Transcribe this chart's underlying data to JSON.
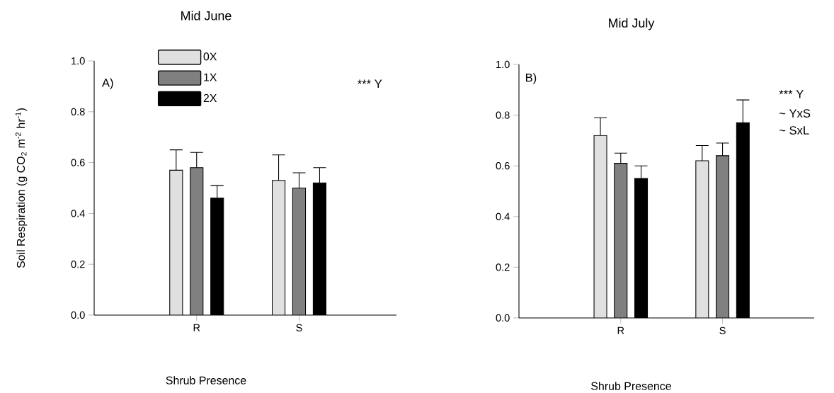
{
  "chart_data": [
    {
      "type": "bar",
      "title": "Mid June",
      "xlabel": "Shrub Presence",
      "ylabel": "Soil Respiration (g CO$_{2}$ m$^{-2}$ hr$^{-1}$)",
      "categories": [
        "R",
        "S"
      ],
      "series": [
        {
          "name": "0X",
          "color": "#e0e0e0",
          "values": [
            0.57,
            0.53
          ],
          "errors": [
            [
              0.57,
              0.65
            ],
            [
              0.53,
              0.63
            ]
          ]
        },
        {
          "name": "1X",
          "color": "#808080",
          "values": [
            0.58,
            0.5
          ],
          "errors": [
            [
              0.58,
              0.64
            ],
            [
              0.5,
              0.56
            ]
          ]
        },
        {
          "name": "2X",
          "color": "#000000",
          "values": [
            0.46,
            0.52
          ],
          "errors": [
            [
              0.46,
              0.51
            ],
            [
              0.52,
              0.58
            ]
          ]
        }
      ],
      "ylim": [
        0,
        1.0
      ],
      "yticks": [
        {
          "value": 0,
          "label": "0.0"
        },
        {
          "value": 0.2,
          "label": "0.2"
        },
        {
          "value": 0.4,
          "label": "0.4"
        },
        {
          "value": 0.6,
          "label": "0.6"
        },
        {
          "value": 0.8,
          "label": "0.8"
        },
        {
          "value": 1.0,
          "label": "1.0"
        }
      ],
      "annotations": [
        "A)",
        "*** Y"
      ],
      "legend": "top left",
      "grid": false
    },
    {
      "type": "bar",
      "title": "Mid July",
      "xlabel": "Shrub Presence",
      "categories": [
        "R",
        "S"
      ],
      "series": [
        {
          "color": "#e0e0e0",
          "values": [
            0.72,
            0.62
          ],
          "errors": [
            [
              0.72,
              0.79
            ],
            [
              0.62,
              0.68
            ]
          ]
        },
        {
          "color": "#808080",
          "values": [
            0.61,
            0.64
          ],
          "errors": [
            [
              0.61,
              0.65
            ],
            [
              0.64,
              0.69
            ]
          ]
        },
        {
          "color": "#000000",
          "values": [
            0.55,
            0.77
          ],
          "errors": [
            [
              0.55,
              0.6
            ],
            [
              0.77,
              0.86
            ]
          ]
        }
      ],
      "ylim": [
        0,
        1.0
      ],
      "yticks": [
        {
          "value": 0,
          "label": "0.0"
        },
        {
          "value": 0.2,
          "label": "0.2"
        },
        {
          "value": 0.4,
          "label": "0.4"
        },
        {
          "value": 0.6,
          "label": "0.6"
        },
        {
          "value": 0.8,
          "label": "0.8"
        },
        {
          "value": 1.0,
          "label": "1.0"
        }
      ],
      "annotations": [
        "B)",
        "*** Y",
        "~ YxS",
        "~ SxL"
      ],
      "legend": false,
      "grid": false
    }
  ]
}
